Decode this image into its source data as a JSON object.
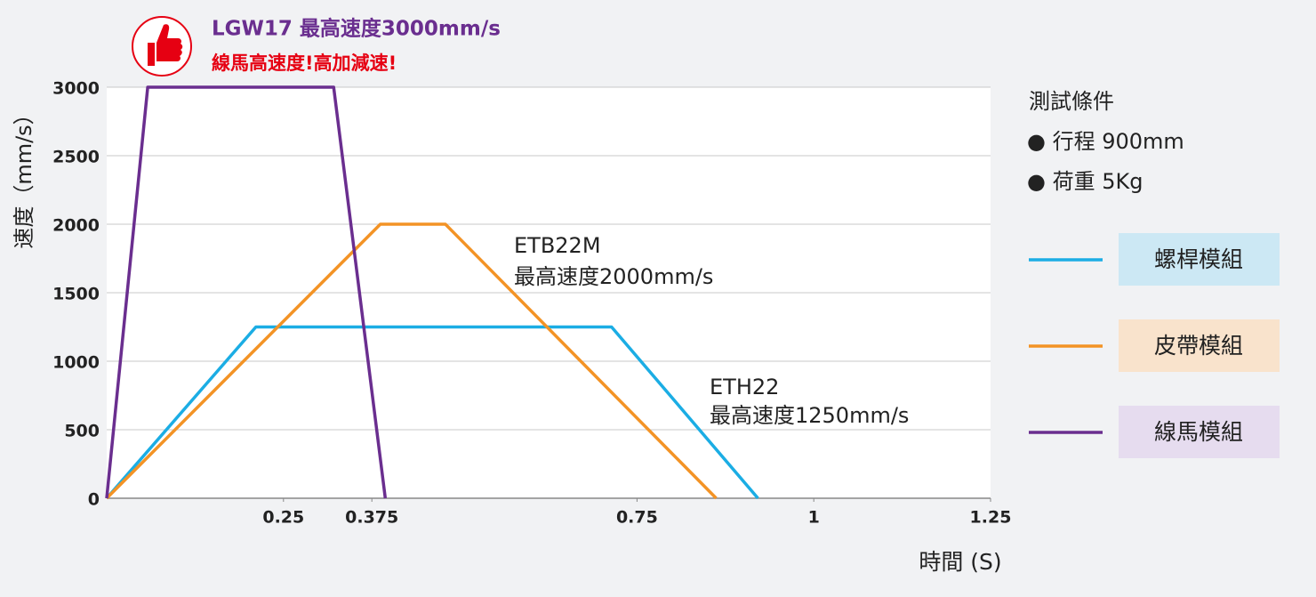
{
  "chart_data": {
    "type": "line",
    "title": "LGW17 最高速度3000mm/s",
    "subtitle": "線馬高速度!高加減速!",
    "y_label": "速度（mm/s）",
    "x_label": "時間 (S)",
    "xlim": [
      0,
      1.25
    ],
    "xticks": [
      0.25,
      0.375,
      0.75,
      1,
      1.25
    ],
    "ylim": [
      0,
      3000
    ],
    "yticks": [
      0,
      500,
      1000,
      1500,
      2000,
      2500,
      3000
    ],
    "grid": true,
    "series": [
      {
        "name": "螺桿模組",
        "color": "#1badE4",
        "x": [
          0,
          0.211,
          0.714,
          0.921
        ],
        "values": [
          0,
          1250,
          1250,
          0
        ]
      },
      {
        "name": "皮帶模組",
        "color": "#f39325",
        "x": [
          0,
          0.387,
          0.479,
          0.862
        ],
        "values": [
          0,
          2000,
          2000,
          0
        ]
      },
      {
        "name": "線馬模組",
        "color": "#6a2e8f",
        "x": [
          0,
          0.058,
          0.321,
          0.394
        ],
        "values": [
          0,
          3000,
          3000,
          0
        ]
      }
    ],
    "annotations": [
      "ETB22M",
      "最高速度2000mm/s",
      "ETH22",
      "最高速度1250mm/s"
    ],
    "conditions": [
      "測試條件",
      "● 行程 900mm",
      "● 荷重 5Kg"
    ]
  }
}
